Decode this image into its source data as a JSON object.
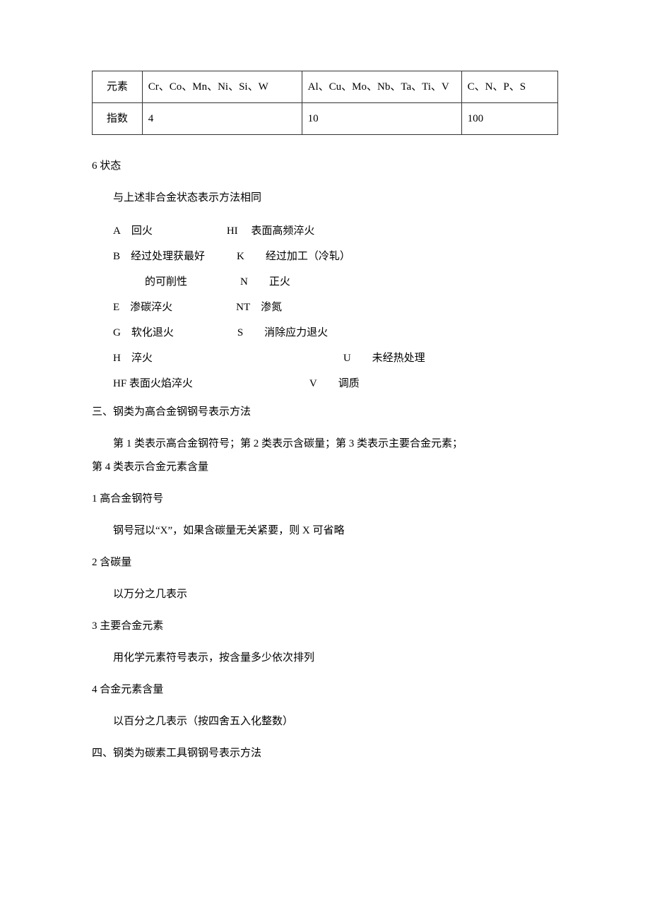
{
  "table": {
    "rows": [
      {
        "c1": "元素",
        "c2": "Cr、Co、Mn、Ni、Si、W",
        "c3": "Al、Cu、Mo、Nb、Ta、Ti、V",
        "c4": "C、N、P、S"
      },
      {
        "c1": "指数",
        "c2": "4",
        "c3": "10",
        "c4": "100"
      }
    ]
  },
  "section6": {
    "title": "6 状态",
    "intro": "与上述非合金状态表示方法相同",
    "statusLines": [
      "A 回火       HI  表面高频淬火",
      "B 经过处理获最好   K  经过加工（冷轧）",
      "   的可削性     N  正火",
      "E 渗碳淬火      NT 渗氮",
      "G 软化退火      S  消除应力退火",
      "H 淬火                  U  未经热处理",
      "HF 表面火焰淬火           V  调质"
    ]
  },
  "section3": {
    "title": "三、钢类为高合金钢钢号表示方法",
    "intro": "第 1 类表示高合金钢符号；第 2 类表示含碳量；第 3 类表示主要合金元素；",
    "introCont": "第 4 类表示合金元素含量",
    "items": [
      {
        "h": "1 高合金钢符号",
        "b": "钢号冠以“X”，如果含碳量无关紧要，则 X 可省略"
      },
      {
        "h": "2 含碳量",
        "b": "以万分之几表示"
      },
      {
        "h": "3 主要合金元素",
        "b": "用化学元素符号表示，按含量多少依次排列"
      },
      {
        "h": "4 合金元素含量",
        "b": "以百分之几表示（按四舍五入化整数）"
      }
    ]
  },
  "section4": {
    "title": "四、钢类为碳素工具钢钢号表示方法"
  }
}
